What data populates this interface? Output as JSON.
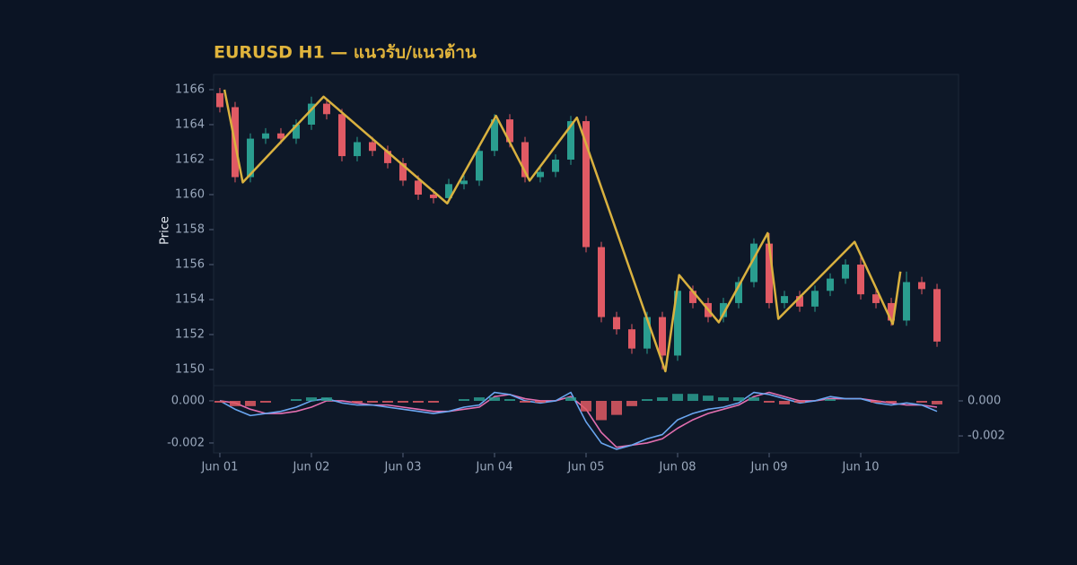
{
  "chart_data": [
    {
      "type": "candlestick",
      "title": "EURUSD H1 — แนวรับ/แนวต้าน",
      "ylabel": "Price",
      "ylim": [
        1149.08,
        1166.87
      ],
      "yticks": [
        1150,
        1152,
        1154,
        1156,
        1158,
        1160,
        1162,
        1164,
        1166
      ],
      "x": [
        0,
        1,
        2,
        3,
        4,
        5,
        6,
        7,
        8,
        9,
        10,
        11,
        12,
        13,
        14,
        15,
        16,
        17,
        18,
        19,
        20,
        21,
        22,
        23,
        24,
        25,
        26,
        27,
        28,
        29,
        30,
        31,
        32,
        33,
        34,
        35,
        36,
        37,
        38,
        39,
        40,
        41,
        42,
        43,
        44,
        45,
        46,
        47
      ],
      "open": [
        1165.8,
        1165.0,
        1161.0,
        1163.2,
        1163.5,
        1163.2,
        1164.0,
        1165.2,
        1164.6,
        1162.2,
        1163.0,
        1162.5,
        1161.8,
        1160.8,
        1160.0,
        1159.8,
        1160.6,
        1160.8,
        1162.5,
        1164.3,
        1163.0,
        1161.0,
        1161.3,
        1162.0,
        1164.2,
        1157.0,
        1153.0,
        1152.3,
        1151.2,
        1153.0,
        1150.8,
        1154.5,
        1153.8,
        1153.0,
        1153.8,
        1155.0,
        1157.2,
        1153.8,
        1154.2,
        1153.6,
        1154.5,
        1155.2,
        1156.0,
        1154.3,
        1153.8,
        1152.8,
        1155.0,
        1154.6
      ],
      "high": [
        1166.1,
        1165.3,
        1163.5,
        1163.8,
        1163.8,
        1164.3,
        1165.6,
        1165.5,
        1164.9,
        1163.3,
        1163.3,
        1162.8,
        1162.1,
        1161.1,
        1160.3,
        1160.9,
        1161.1,
        1162.8,
        1164.6,
        1164.6,
        1163.3,
        1161.6,
        1162.3,
        1164.5,
        1164.5,
        1157.3,
        1153.3,
        1152.6,
        1153.3,
        1153.3,
        1154.8,
        1154.8,
        1154.1,
        1154.1,
        1155.3,
        1157.5,
        1157.8,
        1154.5,
        1154.5,
        1154.8,
        1155.5,
        1156.3,
        1156.6,
        1154.6,
        1154.1,
        1155.6,
        1155.3,
        1154.9
      ],
      "low": [
        1164.7,
        1160.7,
        1160.7,
        1162.9,
        1162.9,
        1162.9,
        1163.7,
        1164.3,
        1161.9,
        1161.9,
        1162.2,
        1161.5,
        1160.5,
        1159.7,
        1159.5,
        1159.5,
        1160.3,
        1160.5,
        1162.2,
        1162.7,
        1160.7,
        1160.7,
        1161.0,
        1161.7,
        1156.7,
        1152.7,
        1152.0,
        1150.9,
        1150.9,
        1150.0,
        1150.5,
        1153.5,
        1152.7,
        1152.7,
        1153.5,
        1154.7,
        1153.5,
        1153.5,
        1153.3,
        1153.3,
        1154.2,
        1154.9,
        1154.0,
        1153.5,
        1152.5,
        1152.5,
        1154.3,
        1151.3
      ],
      "close": [
        1165.0,
        1161.0,
        1163.2,
        1163.5,
        1163.2,
        1164.0,
        1165.2,
        1164.6,
        1162.2,
        1163.0,
        1162.5,
        1161.8,
        1160.8,
        1160.0,
        1159.8,
        1160.6,
        1160.8,
        1162.5,
        1164.3,
        1163.0,
        1161.0,
        1161.3,
        1162.0,
        1164.2,
        1157.0,
        1153.0,
        1152.3,
        1151.2,
        1153.0,
        1150.8,
        1154.5,
        1153.8,
        1153.0,
        1153.8,
        1155.0,
        1157.2,
        1153.8,
        1154.2,
        1153.6,
        1154.5,
        1155.2,
        1156.0,
        1154.3,
        1153.8,
        1152.8,
        1155.0,
        1154.6,
        1151.6
      ],
      "up_color": "#2a9d8f",
      "down_color": "#e05a64",
      "zigzag": {
        "color": "#d9b13f",
        "x": [
          0.3,
          1.5,
          6.8,
          14.9,
          18.1,
          20.3,
          23.4,
          29.2,
          30.1,
          32.7,
          35.9,
          36.6,
          41.6,
          44.1,
          44.6
        ],
        "values": [
          1166.0,
          1160.7,
          1165.6,
          1159.5,
          1164.5,
          1160.8,
          1164.4,
          1149.9,
          1155.4,
          1152.7,
          1157.8,
          1152.9,
          1157.3,
          1152.6,
          1155.6
        ]
      }
    },
    {
      "type": "macd",
      "xlim": [
        -0.41,
        48.41
      ],
      "xticks": [
        {
          "value": 0,
          "label": "Jun 01"
        },
        {
          "value": 6,
          "label": "Jun 02"
        },
        {
          "value": 12,
          "label": "Jun 03"
        },
        {
          "value": 18,
          "label": "Jun 04"
        },
        {
          "value": 24,
          "label": "Jun 05"
        },
        {
          "value": 30,
          "label": "Jun 08"
        },
        {
          "value": 36,
          "label": "Jun 09"
        },
        {
          "value": 42,
          "label": "Jun 10"
        }
      ],
      "ylim": [
        -0.00247,
        0.00072
      ],
      "yticks": [
        {
          "value": 0,
          "label": "0.000"
        },
        {
          "value": -0.002,
          "label": "-0.002"
        }
      ],
      "y2lim": [
        -0.00297,
        0.00087
      ],
      "y2ticks": [
        {
          "value": 0,
          "label": "0.000"
        },
        {
          "value": -0.002,
          "label": "-0.002"
        }
      ],
      "series": [
        {
          "color": "#e36fb0",
          "values": [
            0,
            -0.0001,
            -0.0004,
            -0.0006,
            -0.0006,
            -0.0005,
            -0.0003,
            0.0,
            0.0,
            -0.0001,
            -0.0002,
            -0.0002,
            -0.0003,
            -0.0004,
            -0.0005,
            -0.0005,
            -0.0004,
            -0.0003,
            0.0002,
            0.0003,
            0.0001,
            0.0,
            0.0,
            0.0002,
            -0.0004,
            -0.0015,
            -0.0022,
            -0.0021,
            -0.002,
            -0.0018,
            -0.0013,
            -0.0009,
            -0.0006,
            -0.0004,
            -0.0002,
            0.0002,
            0.0004,
            0.0002,
            0.0,
            0.0,
            0.0001,
            0.0001,
            0.0001,
            0.0,
            -0.0001,
            -0.0002,
            -0.0002,
            -0.0003
          ]
        },
        {
          "color": "#6aa6f0",
          "values": [
            0,
            -0.0004,
            -0.0007,
            -0.0006,
            -0.0005,
            -0.0003,
            0.0,
            0.0001,
            -0.0001,
            -0.0002,
            -0.0002,
            -0.0003,
            -0.0004,
            -0.0005,
            -0.0006,
            -0.0005,
            -0.0003,
            -0.0002,
            0.0004,
            0.0003,
            0.0,
            -0.0001,
            0.0,
            0.0004,
            -0.001,
            -0.002,
            -0.0023,
            -0.0021,
            -0.0018,
            -0.0016,
            -0.0009,
            -0.0006,
            -0.0004,
            -0.0003,
            -0.0001,
            0.0004,
            0.0003,
            0.0001,
            -0.0001,
            0.0,
            0.0002,
            0.0001,
            0.0001,
            -0.0001,
            -0.0002,
            -0.0001,
            -0.0002,
            -0.0005
          ]
        },
        {
          "type": "bar",
          "axis": "y2",
          "up_color": "#2a9d8f",
          "down_color": "#e05a64",
          "values": [
            -0.0001,
            -0.0003,
            -0.0003,
            -0.0001,
            0.0,
            0.0001,
            0.0002,
            0.0002,
            0.0,
            -0.0001,
            -0.0001,
            -0.0001,
            -0.0001,
            -0.0001,
            -0.0001,
            0.0,
            0.0001,
            0.0002,
            0.0002,
            0.0001,
            -0.0001,
            -0.0001,
            0.0,
            0.0002,
            -0.0006,
            -0.0011,
            -0.0008,
            -0.0003,
            0.0001,
            0.0002,
            0.0004,
            0.0004,
            0.0003,
            0.0002,
            0.0002,
            0.0002,
            -0.0001,
            -0.0002,
            -0.0001,
            0.0,
            0.0001,
            0.0,
            0.0,
            -0.0001,
            -0.0001,
            0.0,
            -0.0001,
            -0.0002
          ]
        }
      ]
    }
  ]
}
